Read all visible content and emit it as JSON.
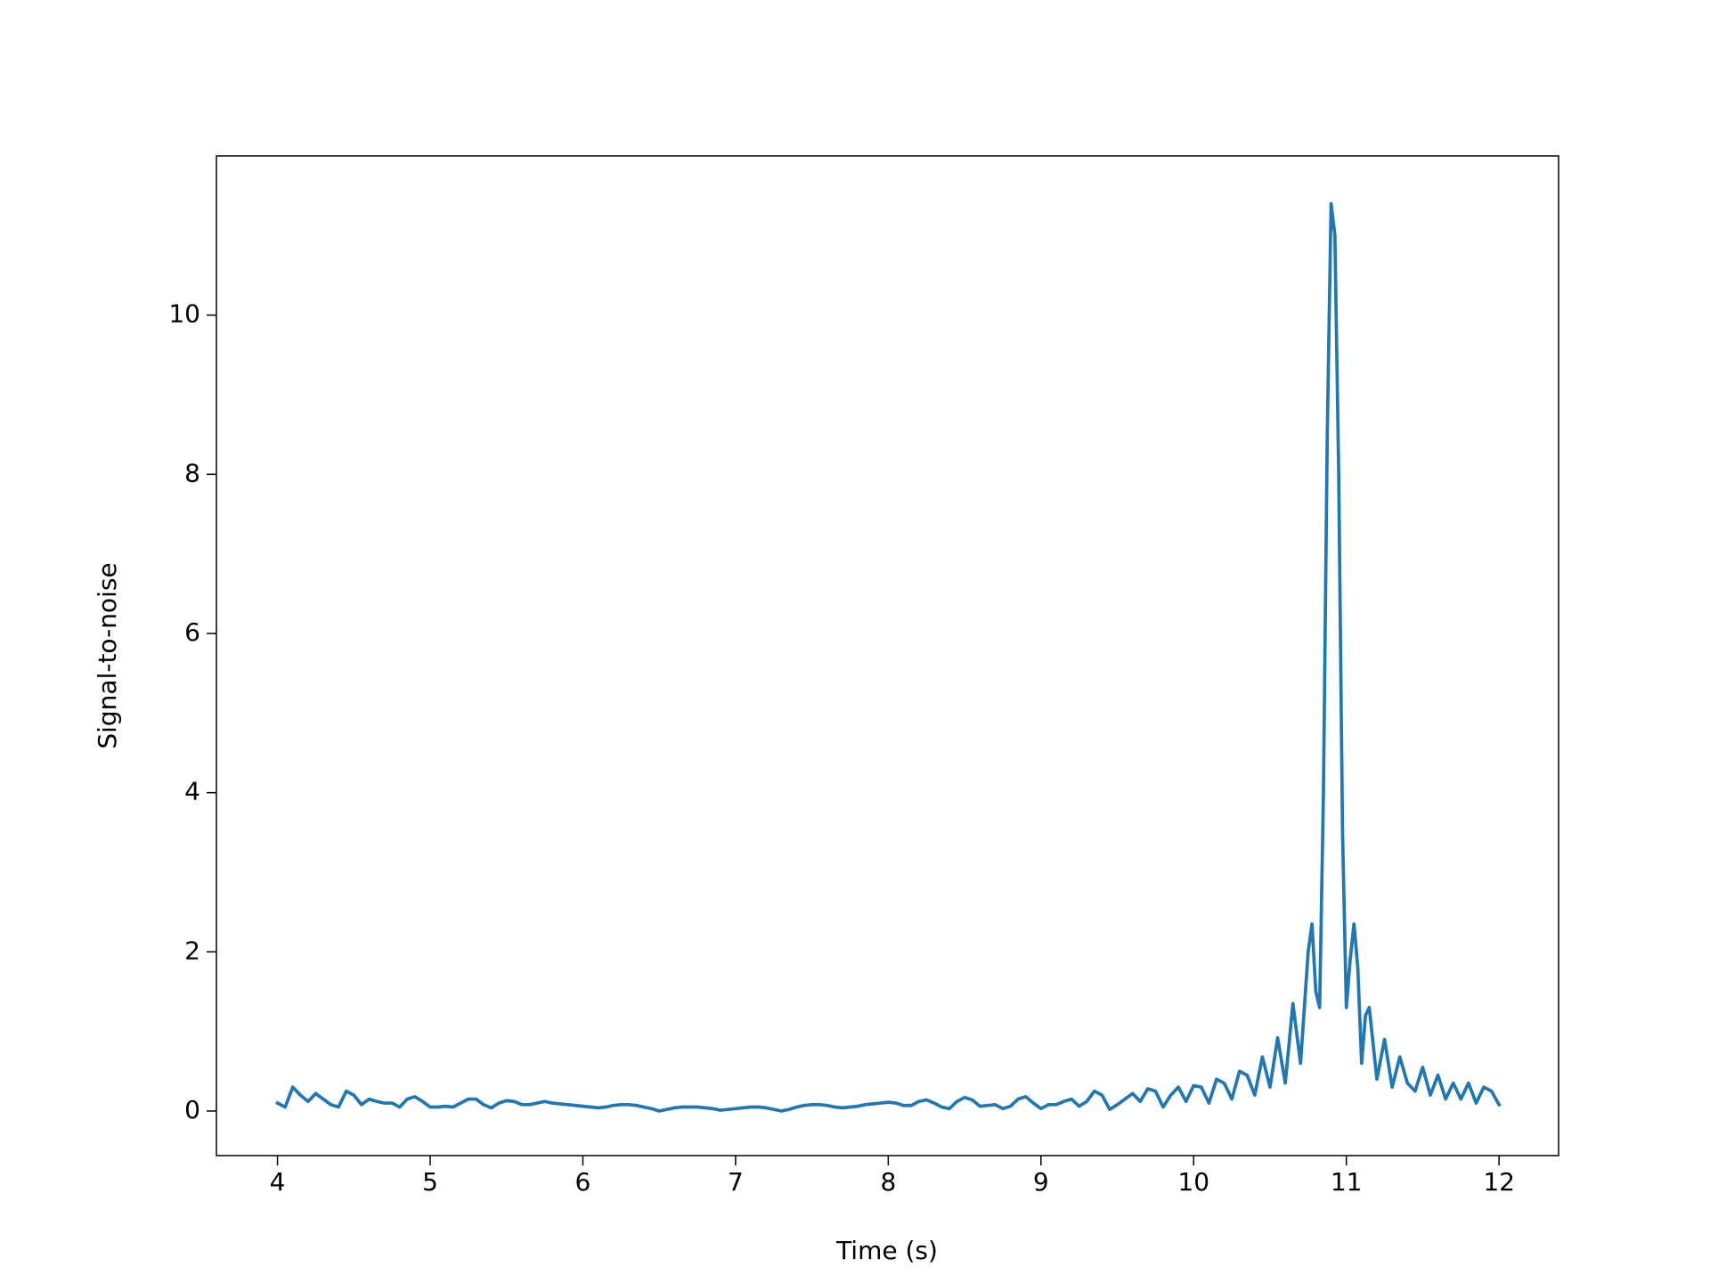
{
  "chart_data": {
    "type": "line",
    "xlabel": "Time (s)",
    "ylabel": "Signal-to-noise",
    "color": "#1f77b4",
    "x": [
      4.0,
      4.05,
      4.1,
      4.15,
      4.2,
      4.25,
      4.3,
      4.35,
      4.4,
      4.45,
      4.5,
      4.55,
      4.6,
      4.65,
      4.7,
      4.75,
      4.8,
      4.85,
      4.9,
      4.95,
      5.0,
      5.05,
      5.1,
      5.15,
      5.2,
      5.25,
      5.3,
      5.35,
      5.4,
      5.45,
      5.5,
      5.55,
      5.6,
      5.65,
      5.7,
      5.75,
      5.8,
      5.85,
      5.9,
      5.95,
      6.0,
      6.05,
      6.1,
      6.15,
      6.2,
      6.25,
      6.3,
      6.35,
      6.4,
      6.45,
      6.5,
      6.55,
      6.6,
      6.65,
      6.7,
      6.75,
      6.8,
      6.85,
      6.9,
      6.95,
      7.0,
      7.05,
      7.1,
      7.15,
      7.2,
      7.25,
      7.3,
      7.35,
      7.4,
      7.45,
      7.5,
      7.55,
      7.6,
      7.65,
      7.7,
      7.75,
      7.8,
      7.85,
      7.9,
      7.95,
      8.0,
      8.05,
      8.1,
      8.15,
      8.2,
      8.25,
      8.3,
      8.35,
      8.4,
      8.45,
      8.5,
      8.55,
      8.6,
      8.65,
      8.7,
      8.75,
      8.8,
      8.85,
      8.9,
      8.95,
      9.0,
      9.05,
      9.1,
      9.15,
      9.2,
      9.25,
      9.3,
      9.35,
      9.4,
      9.45,
      9.5,
      9.55,
      9.6,
      9.65,
      9.7,
      9.75,
      9.8,
      9.85,
      9.9,
      9.95,
      10.0,
      10.05,
      10.1,
      10.15,
      10.2,
      10.25,
      10.3,
      10.35,
      10.4,
      10.45,
      10.5,
      10.55,
      10.6,
      10.65,
      10.7,
      10.75,
      10.775,
      10.8,
      10.825,
      10.85,
      10.875,
      10.9,
      10.925,
      10.95,
      10.975,
      11.0,
      11.025,
      11.05,
      11.075,
      11.1,
      11.125,
      11.15,
      11.2,
      11.25,
      11.3,
      11.35,
      11.4,
      11.45,
      11.5,
      11.55,
      11.6,
      11.65,
      11.7,
      11.75,
      11.8,
      11.85,
      11.9,
      11.95,
      12.0
    ],
    "values": [
      0.1,
      0.05,
      0.3,
      0.2,
      0.12,
      0.22,
      0.15,
      0.08,
      0.05,
      0.25,
      0.2,
      0.08,
      0.15,
      0.12,
      0.1,
      0.1,
      0.05,
      0.15,
      0.18,
      0.12,
      0.05,
      0.05,
      0.06,
      0.05,
      0.1,
      0.15,
      0.15,
      0.08,
      0.04,
      0.1,
      0.13,
      0.12,
      0.08,
      0.08,
      0.1,
      0.12,
      0.1,
      0.09,
      0.08,
      0.07,
      0.06,
      0.05,
      0.04,
      0.05,
      0.07,
      0.08,
      0.08,
      0.07,
      0.05,
      0.03,
      0.0,
      0.02,
      0.04,
      0.05,
      0.05,
      0.05,
      0.04,
      0.03,
      0.01,
      0.02,
      0.03,
      0.04,
      0.05,
      0.05,
      0.04,
      0.02,
      0.0,
      0.02,
      0.05,
      0.07,
      0.08,
      0.08,
      0.07,
      0.05,
      0.04,
      0.05,
      0.06,
      0.08,
      0.09,
      0.1,
      0.11,
      0.1,
      0.07,
      0.07,
      0.12,
      0.14,
      0.1,
      0.05,
      0.03,
      0.12,
      0.17,
      0.14,
      0.06,
      0.07,
      0.08,
      0.03,
      0.06,
      0.15,
      0.18,
      0.1,
      0.03,
      0.08,
      0.08,
      0.12,
      0.15,
      0.06,
      0.12,
      0.25,
      0.2,
      0.02,
      0.08,
      0.15,
      0.22,
      0.12,
      0.28,
      0.25,
      0.05,
      0.2,
      0.3,
      0.12,
      0.32,
      0.3,
      0.1,
      0.4,
      0.35,
      0.15,
      0.5,
      0.45,
      0.2,
      0.68,
      0.3,
      0.92,
      0.35,
      1.35,
      0.6,
      2.0,
      2.35,
      1.5,
      1.3,
      4.0,
      8.5,
      11.4,
      11.0,
      8.0,
      3.5,
      1.3,
      1.9,
      2.35,
      1.8,
      0.6,
      1.2,
      1.3,
      0.4,
      0.9,
      0.3,
      0.68,
      0.35,
      0.25,
      0.55,
      0.2,
      0.45,
      0.15,
      0.35,
      0.15,
      0.35,
      0.1,
      0.3,
      0.25,
      0.08
    ],
    "xlim": [
      3.6,
      12.39
    ],
    "ylim": [
      -0.56,
      12.0
    ],
    "xticks": [
      4,
      5,
      6,
      7,
      8,
      9,
      10,
      11,
      12
    ],
    "yticks": [
      0,
      2,
      4,
      6,
      8,
      10
    ]
  }
}
